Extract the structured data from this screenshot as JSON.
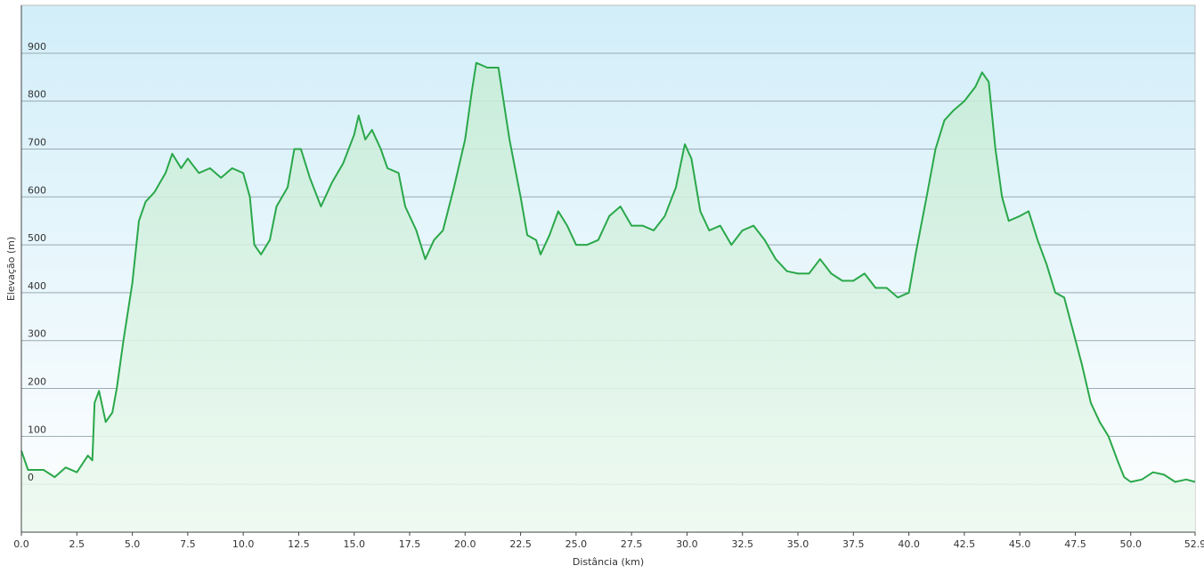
{
  "chart_data": {
    "type": "area",
    "xlabel": "Distância  (km)",
    "ylabel": "Elevação (m)",
    "color": "#2aa84a",
    "x": [
      0,
      0.3,
      1,
      1.5,
      2,
      2.5,
      3,
      3.2,
      3.3,
      3.5,
      3.8,
      4.1,
      4.3,
      4.6,
      5,
      5.3,
      5.6,
      6,
      6.5,
      6.8,
      7.2,
      7.5,
      8,
      8.5,
      9,
      9.5,
      10,
      10.3,
      10.5,
      10.8,
      11.2,
      11.5,
      12,
      12.3,
      12.6,
      13,
      13.5,
      14,
      14.5,
      15,
      15.2,
      15.5,
      15.8,
      16.2,
      16.5,
      17,
      17.3,
      17.8,
      18.2,
      18.6,
      19,
      19.5,
      20,
      20.3,
      20.5,
      21,
      21.5,
      22,
      22.5,
      22.8,
      23.2,
      23.4,
      23.8,
      24.2,
      24.6,
      25,
      25.5,
      26,
      26.5,
      27,
      27.5,
      28,
      28.5,
      29,
      29.5,
      29.9,
      30.2,
      30.6,
      31,
      31.5,
      32,
      32.5,
      33,
      33.5,
      34,
      34.5,
      35,
      35.5,
      36,
      36.5,
      37,
      37.5,
      38,
      38.5,
      39,
      39.5,
      40,
      40.3,
      40.8,
      41.2,
      41.6,
      42,
      42.5,
      43,
      43.3,
      43.6,
      43.9,
      44.2,
      44.5,
      45,
      45.4,
      45.8,
      46.2,
      46.6,
      47,
      47.4,
      47.8,
      48.2,
      48.6,
      49,
      49.4,
      49.7,
      50,
      50.5,
      51,
      51.5,
      52,
      52.5,
      52.9
    ],
    "values": [
      70,
      30,
      30,
      15,
      35,
      25,
      60,
      50,
      170,
      195,
      130,
      150,
      200,
      300,
      420,
      550,
      590,
      610,
      650,
      690,
      660,
      680,
      650,
      660,
      640,
      660,
      650,
      600,
      500,
      480,
      510,
      580,
      620,
      700,
      700,
      640,
      580,
      630,
      670,
      730,
      770,
      720,
      740,
      700,
      660,
      650,
      580,
      530,
      470,
      510,
      530,
      620,
      720,
      820,
      880,
      870,
      870,
      720,
      600,
      520,
      510,
      480,
      520,
      570,
      540,
      500,
      500,
      510,
      560,
      580,
      540,
      540,
      530,
      560,
      620,
      710,
      680,
      570,
      530,
      540,
      500,
      530,
      540,
      510,
      470,
      445,
      440,
      440,
      470,
      440,
      425,
      425,
      440,
      410,
      410,
      390,
      400,
      480,
      600,
      700,
      760,
      780,
      800,
      830,
      860,
      840,
      700,
      600,
      550,
      560,
      570,
      510,
      460,
      400,
      390,
      320,
      250,
      170,
      130,
      100,
      50,
      15,
      5,
      10,
      25,
      20,
      5,
      10,
      5
    ],
    "xlim": [
      0,
      52.9
    ],
    "xticks": [
      {
        "value": 0,
        "label": "0.0"
      },
      2.5,
      {
        "value": 5,
        "label": "5.0"
      },
      7.5,
      {
        "value": 10,
        "label": "10.0"
      },
      12.5,
      {
        "value": 15,
        "label": "15.0"
      },
      17.5,
      {
        "value": 20,
        "label": "20.0"
      },
      22.5,
      {
        "value": 25,
        "label": "25.0"
      },
      27.5,
      {
        "value": 30,
        "label": "30.0"
      },
      32.5,
      {
        "value": 35,
        "label": "35.0"
      },
      37.5,
      {
        "value": 40,
        "label": "40.0"
      },
      42.5,
      {
        "value": 45,
        "label": "45.0"
      },
      47.5,
      {
        "value": 50,
        "label": "50.0"
      },
      52.9
    ],
    "ylim": [
      -100,
      1000
    ],
    "yticks": [
      0,
      100,
      200,
      300,
      400,
      500,
      600,
      700,
      800,
      900
    ],
    "grid": true
  }
}
